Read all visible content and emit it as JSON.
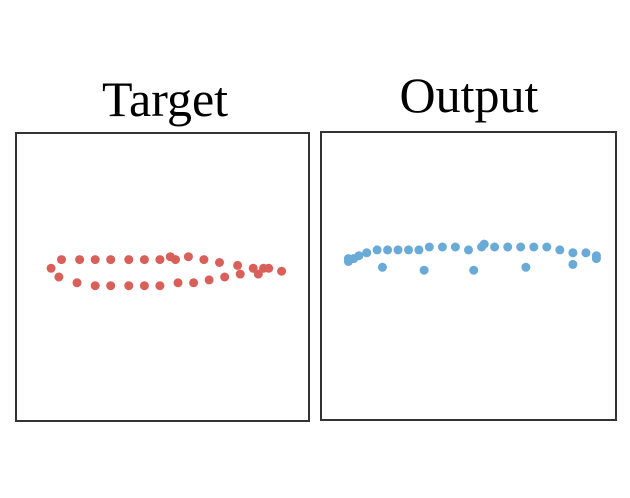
{
  "chart_data": [
    {
      "type": "scatter",
      "title": "Target",
      "color": "#d9605a",
      "xlim": [
        0,
        1
      ],
      "ylim": [
        0,
        1
      ],
      "grid": false,
      "points": [
        [
          0.07,
          0.53
        ],
        [
          0.11,
          0.56
        ],
        [
          0.18,
          0.56
        ],
        [
          0.24,
          0.56
        ],
        [
          0.3,
          0.56
        ],
        [
          0.37,
          0.56
        ],
        [
          0.43,
          0.56
        ],
        [
          0.49,
          0.56
        ],
        [
          0.53,
          0.57
        ],
        [
          0.55,
          0.56
        ],
        [
          0.6,
          0.57
        ],
        [
          0.66,
          0.56
        ],
        [
          0.72,
          0.55
        ],
        [
          0.79,
          0.54
        ],
        [
          0.85,
          0.53
        ],
        [
          0.91,
          0.53
        ],
        [
          0.96,
          0.52
        ],
        [
          0.1,
          0.5
        ],
        [
          0.17,
          0.48
        ],
        [
          0.24,
          0.47
        ],
        [
          0.3,
          0.47
        ],
        [
          0.37,
          0.47
        ],
        [
          0.43,
          0.47
        ],
        [
          0.49,
          0.47
        ],
        [
          0.56,
          0.48
        ],
        [
          0.62,
          0.48
        ],
        [
          0.68,
          0.49
        ],
        [
          0.74,
          0.5
        ],
        [
          0.8,
          0.51
        ],
        [
          0.87,
          0.51
        ],
        [
          0.89,
          0.53
        ]
      ]
    },
    {
      "type": "scatter",
      "title": "Output",
      "color": "#6aaad6",
      "xlim": [
        0,
        1
      ],
      "ylim": [
        0,
        1
      ],
      "grid": false,
      "points": [
        [
          0.04,
          0.56
        ],
        [
          0.06,
          0.56
        ],
        [
          0.08,
          0.57
        ],
        [
          0.11,
          0.58
        ],
        [
          0.15,
          0.59
        ],
        [
          0.19,
          0.59
        ],
        [
          0.23,
          0.59
        ],
        [
          0.27,
          0.59
        ],
        [
          0.31,
          0.59
        ],
        [
          0.35,
          0.6
        ],
        [
          0.4,
          0.6
        ],
        [
          0.45,
          0.6
        ],
        [
          0.5,
          0.59
        ],
        [
          0.55,
          0.6
        ],
        [
          0.56,
          0.61
        ],
        [
          0.6,
          0.6
        ],
        [
          0.65,
          0.6
        ],
        [
          0.7,
          0.6
        ],
        [
          0.75,
          0.6
        ],
        [
          0.8,
          0.6
        ],
        [
          0.85,
          0.59
        ],
        [
          0.9,
          0.58
        ],
        [
          0.95,
          0.58
        ],
        [
          0.99,
          0.57
        ],
        [
          0.99,
          0.56
        ],
        [
          0.04,
          0.55
        ],
        [
          0.17,
          0.53
        ],
        [
          0.33,
          0.52
        ],
        [
          0.52,
          0.52
        ],
        [
          0.72,
          0.53
        ],
        [
          0.9,
          0.54
        ]
      ]
    }
  ]
}
